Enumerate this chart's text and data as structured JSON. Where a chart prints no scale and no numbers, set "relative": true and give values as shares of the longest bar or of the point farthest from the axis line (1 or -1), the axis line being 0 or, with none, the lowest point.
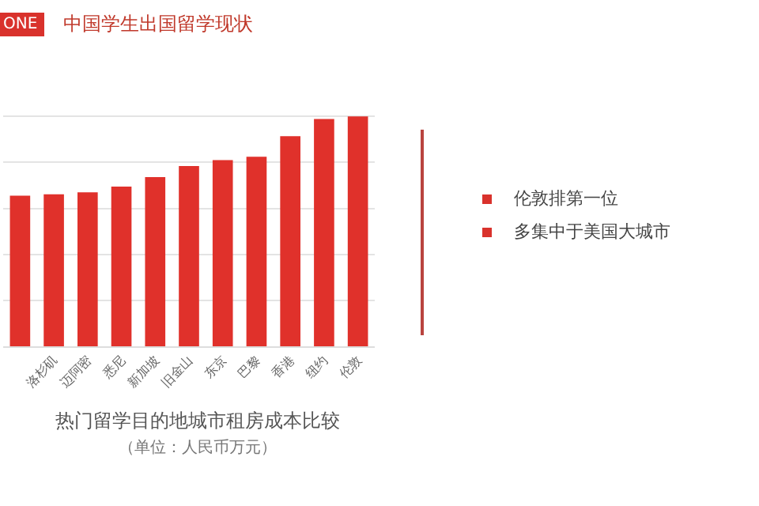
{
  "chart_data": {
    "type": "bar",
    "title": "热门留学目的地城市租房成本比较",
    "subtitle": "（单位：人民币万元）",
    "annotations": [
      "ONE",
      "中国学生出国留学现状",
      "伦敦排第一位",
      "多集中于美国大城市"
    ],
    "categories": [
      null,
      "洛杉矶",
      "迈阿密",
      "悉尼",
      "新加坡",
      "旧金山",
      "东京",
      "巴黎",
      "香港",
      "纽约",
      "伦敦"
    ],
    "values": [
      0.655,
      0.661,
      0.67,
      0.695,
      0.736,
      0.784,
      0.81,
      0.825,
      0.914,
      0.989,
      1
    ],
    "color": "#e0312b",
    "relative": true,
    "grid": "y"
  }
}
